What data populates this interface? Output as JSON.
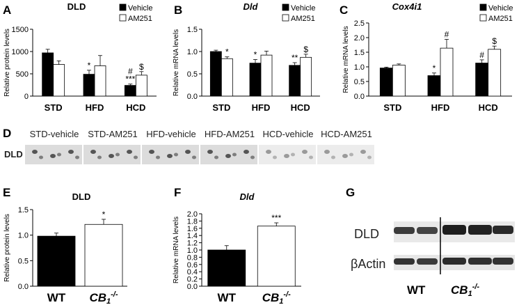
{
  "panels": {
    "A": "A",
    "B": "B",
    "C": "C",
    "D": "D",
    "E": "E",
    "F": "F",
    "G": "G"
  },
  "legend": {
    "vehicle": "Vehicle",
    "am251": "AM251"
  },
  "blot_D": {
    "label": "DLD",
    "lanes": [
      "STD-vehicle",
      "STD-AM251",
      "HFD-vehicle",
      "HFD-AM251",
      "HCD-vehicle",
      "HCD-AM251"
    ]
  },
  "blot_G": {
    "rows": [
      "DLD",
      "βActin"
    ],
    "groups": [
      "WT",
      "CB1-/-"
    ]
  },
  "chart_data": [
    {
      "id": "A",
      "type": "bar",
      "title": "DLD",
      "title_italic": false,
      "ylabel": "Relative protein levels",
      "ylim": [
        0,
        1500
      ],
      "yticks": [
        0,
        500,
        1000,
        1500
      ],
      "categories": [
        "STD",
        "HFD",
        "HCD"
      ],
      "series": [
        {
          "name": "Vehicle",
          "values": [
            970,
            490,
            240
          ],
          "errors": [
            80,
            90,
            30
          ],
          "sig": [
            "",
            "*",
            "***"
          ]
        },
        {
          "name": "AM251",
          "values": [
            710,
            680,
            470
          ],
          "errors": [
            80,
            230,
            80
          ],
          "sig": [
            "",
            "",
            "$"
          ]
        }
      ],
      "extra_sig": [
        {
          "category": 2,
          "series": 0,
          "text": "#"
        }
      ]
    },
    {
      "id": "B",
      "type": "bar",
      "title": "Dld",
      "title_italic": true,
      "ylabel": "Relative mRNA levels",
      "ylim": [
        0,
        1.5
      ],
      "yticks": [
        0.0,
        0.5,
        1.0,
        1.5
      ],
      "categories": [
        "STD",
        "HFD",
        "HCD"
      ],
      "series": [
        {
          "name": "Vehicle",
          "values": [
            1.0,
            0.74,
            0.69
          ],
          "errors": [
            0.03,
            0.08,
            0.06
          ],
          "sig": [
            "",
            "*",
            "**"
          ]
        },
        {
          "name": "AM251",
          "values": [
            0.84,
            0.92,
            0.87
          ],
          "errors": [
            0.04,
            0.09,
            0.07
          ],
          "sig": [
            "*",
            "",
            "$"
          ]
        }
      ],
      "extra_sig": []
    },
    {
      "id": "C",
      "type": "bar",
      "title": "Cox4i1",
      "title_italic": true,
      "ylabel": "Relative mRNA levels",
      "ylim": [
        0,
        2.5
      ],
      "yticks": [
        0.0,
        0.5,
        1.0,
        1.5,
        2.0,
        2.5
      ],
      "categories": [
        "STD",
        "HFD",
        "HCD"
      ],
      "series": [
        {
          "name": "Vehicle",
          "values": [
            0.96,
            0.7,
            1.13
          ],
          "errors": [
            0.03,
            0.09,
            0.11
          ],
          "sig": [
            "",
            "*",
            "#"
          ]
        },
        {
          "name": "AM251",
          "values": [
            1.06,
            1.64,
            1.6
          ],
          "errors": [
            0.04,
            0.3,
            0.11
          ],
          "sig": [
            "",
            "#",
            "$"
          ]
        }
      ],
      "extra_sig": []
    },
    {
      "id": "E",
      "type": "bar",
      "title": "DLD",
      "title_italic": false,
      "ylabel": "Relative protein levels",
      "ylim": [
        0,
        1.5
      ],
      "yticks": [
        0.0,
        0.5,
        1.0,
        1.5
      ],
      "categories": [
        "WT",
        "CB1-/-"
      ],
      "series": [
        {
          "name": "",
          "values": [
            0.98,
            1.21
          ],
          "errors": [
            0.06,
            0.1
          ],
          "sig": [
            "",
            "*"
          ]
        }
      ],
      "extra_sig": []
    },
    {
      "id": "F",
      "type": "bar",
      "title": "Dld",
      "title_italic": true,
      "ylabel": "Relative mRNA levels",
      "ylim": [
        0,
        2.0
      ],
      "yticks": [
        0.0,
        0.2,
        0.4,
        0.6,
        0.8,
        1.0,
        1.2,
        1.4,
        1.6,
        1.8,
        2.0
      ],
      "categories": [
        "WT",
        "CB1-/-"
      ],
      "series": [
        {
          "name": "",
          "values": [
            1.0,
            1.66
          ],
          "errors": [
            0.12,
            0.09
          ],
          "sig": [
            "",
            "***"
          ]
        }
      ],
      "extra_sig": []
    }
  ]
}
